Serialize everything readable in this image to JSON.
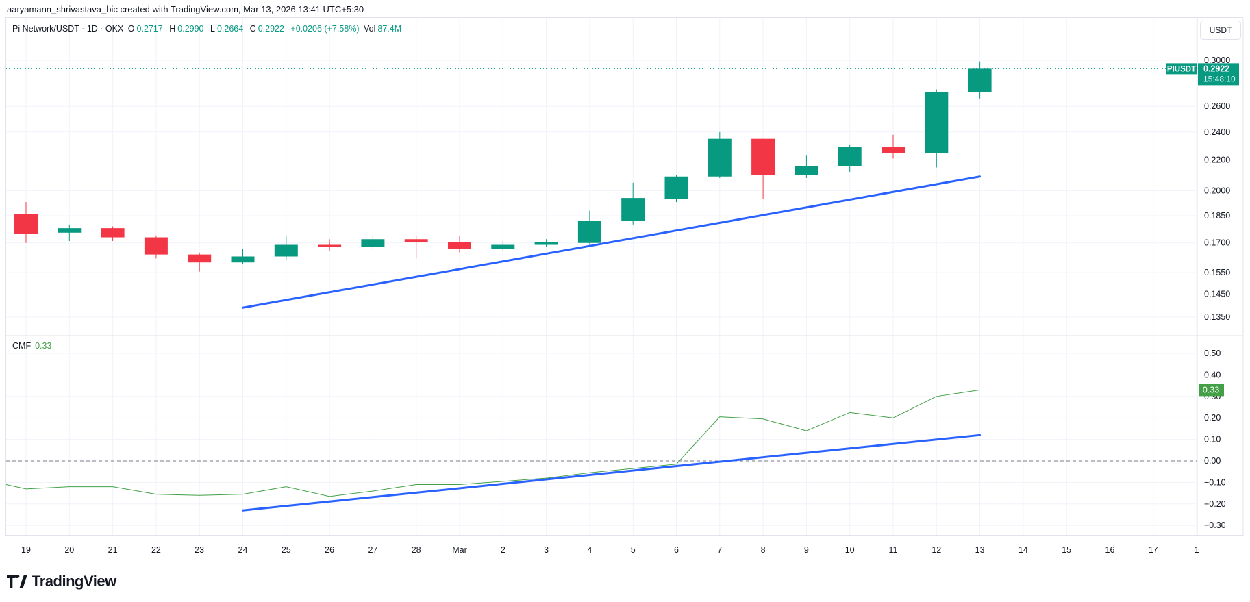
{
  "credit": "aaryamann_shrivastava_bic created with TradingView.com, Mar 13, 2026 13:41 UTC+5:30",
  "legend": {
    "symbol": "Pi Network/USDT · 1D · OKX",
    "o_label": "O",
    "o": "0.2717",
    "h_label": "H",
    "h": "0.2990",
    "l_label": "L",
    "l": "0.2664",
    "c_label": "C",
    "c": "0.2922",
    "change": "+0.0206 (+7.58%)",
    "vol_label": "Vol",
    "vol": "87.4M"
  },
  "currency_button": "USDT",
  "price_tag": {
    "symbol": "PIUSDT",
    "price": "0.2922",
    "countdown": "15:48:10"
  },
  "cmf": {
    "label": "CMF",
    "value": "0.33"
  },
  "logo_text": "TradingView",
  "colors": {
    "up": "#089981",
    "down": "#F23645",
    "trendline": "#2962FF",
    "cmf": "#43A047",
    "grid": "#F0F3FA"
  },
  "chart_data": [
    {
      "type": "candlestick",
      "scale": "log",
      "x_labels": [
        "19",
        "20",
        "21",
        "22",
        "23",
        "24",
        "25",
        "26",
        "27",
        "28",
        "Mar",
        "2",
        "3",
        "4",
        "5",
        "6",
        "7",
        "8",
        "9",
        "10",
        "11",
        "12",
        "13",
        "14",
        "15",
        "16",
        "17",
        "1"
      ],
      "y_ticks": [
        "0.3000",
        "0.2600",
        "0.2400",
        "0.2200",
        "0.2000",
        "0.1850",
        "0.1700",
        "0.1550",
        "0.1450",
        "0.1350"
      ],
      "ylim": [
        0.128,
        0.315
      ],
      "candles": [
        {
          "d": "19",
          "o": 0.186,
          "h": 0.193,
          "l": 0.17,
          "c": 0.175
        },
        {
          "d": "20",
          "o": 0.1755,
          "h": 0.18,
          "l": 0.171,
          "c": 0.178
        },
        {
          "d": "21",
          "o": 0.178,
          "h": 0.179,
          "l": 0.171,
          "c": 0.173
        },
        {
          "d": "22",
          "o": 0.173,
          "h": 0.174,
          "l": 0.162,
          "c": 0.164
        },
        {
          "d": "23",
          "o": 0.164,
          "h": 0.165,
          "l": 0.1555,
          "c": 0.16
        },
        {
          "d": "24",
          "o": 0.16,
          "h": 0.167,
          "l": 0.159,
          "c": 0.163
        },
        {
          "d": "25",
          "o": 0.163,
          "h": 0.174,
          "l": 0.161,
          "c": 0.169
        },
        {
          "d": "26",
          "o": 0.169,
          "h": 0.172,
          "l": 0.166,
          "c": 0.168
        },
        {
          "d": "27",
          "o": 0.168,
          "h": 0.174,
          "l": 0.167,
          "c": 0.172
        },
        {
          "d": "28",
          "o": 0.172,
          "h": 0.174,
          "l": 0.162,
          "c": 0.1705
        },
        {
          "d": "Mar 1",
          "o": 0.1705,
          "h": 0.174,
          "l": 0.165,
          "c": 0.167
        },
        {
          "d": "2",
          "o": 0.167,
          "h": 0.171,
          "l": 0.166,
          "c": 0.169
        },
        {
          "d": "3",
          "o": 0.169,
          "h": 0.172,
          "l": 0.168,
          "c": 0.1705
        },
        {
          "d": "4",
          "o": 0.17,
          "h": 0.188,
          "l": 0.169,
          "c": 0.182
        },
        {
          "d": "5",
          "o": 0.182,
          "h": 0.205,
          "l": 0.18,
          "c": 0.1955
        },
        {
          "d": "6",
          "o": 0.195,
          "h": 0.21,
          "l": 0.193,
          "c": 0.209
        },
        {
          "d": "7",
          "o": 0.209,
          "h": 0.24,
          "l": 0.208,
          "c": 0.235
        },
        {
          "d": "8",
          "o": 0.235,
          "h": 0.235,
          "l": 0.195,
          "c": 0.21
        },
        {
          "d": "9",
          "o": 0.21,
          "h": 0.223,
          "l": 0.208,
          "c": 0.216
        },
        {
          "d": "10",
          "o": 0.216,
          "h": 0.231,
          "l": 0.212,
          "c": 0.229
        },
        {
          "d": "11",
          "o": 0.229,
          "h": 0.238,
          "l": 0.221,
          "c": 0.225
        },
        {
          "d": "12",
          "o": 0.225,
          "h": 0.274,
          "l": 0.215,
          "c": 0.2717
        },
        {
          "d": "13",
          "o": 0.2717,
          "h": 0.299,
          "l": 0.2664,
          "c": 0.2922
        }
      ],
      "trendline": {
        "from": {
          "d": "24",
          "price": 0.139
        },
        "to": {
          "d": "13",
          "price": 0.209
        }
      },
      "last_price": 0.2922
    },
    {
      "type": "line",
      "title": "CMF",
      "y_ticks": [
        "0.50",
        "0.40",
        "0.30",
        "0.20",
        "0.10",
        "0.00",
        "−0.10",
        "−0.20",
        "−0.30"
      ],
      "ylim": [
        -0.35,
        0.55
      ],
      "values": [
        -0.13,
        -0.12,
        -0.12,
        -0.155,
        -0.16,
        -0.155,
        -0.12,
        -0.165,
        -0.14,
        -0.11,
        -0.11,
        -0.095,
        -0.08,
        -0.055,
        -0.035,
        -0.015,
        0.205,
        0.195,
        0.14,
        0.225,
        0.2,
        0.3,
        0.33
      ],
      "lead_in_value": -0.11,
      "zero_line": 0,
      "trendline": {
        "from": {
          "d": "24",
          "value": -0.23
        },
        "to": {
          "d": "13",
          "value": 0.12
        }
      }
    }
  ]
}
